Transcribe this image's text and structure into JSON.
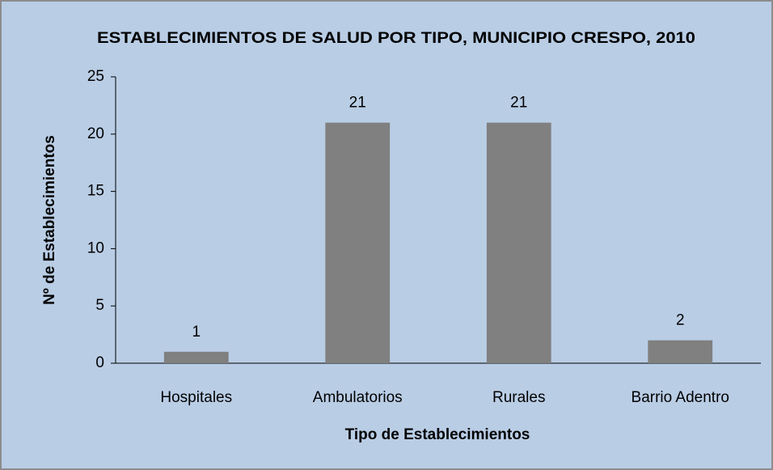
{
  "chart_data": {
    "type": "bar",
    "title": "ESTABLECIMIENTOS DE SALUD POR TIPO, MUNICIPIO CRESPO, 2010",
    "x_label": "Tipo de Establecimientos",
    "y_label": "Nº de Establecimientos",
    "categories": [
      "Hospitales",
      "Ambulatorios",
      "Rurales",
      "Barrio Adentro"
    ],
    "values": [
      1,
      21,
      21,
      2
    ],
    "color": "#808080",
    "ylim": [
      0,
      25
    ],
    "yticks": [
      0,
      5,
      10,
      15,
      20,
      25
    ],
    "grid": false
  }
}
